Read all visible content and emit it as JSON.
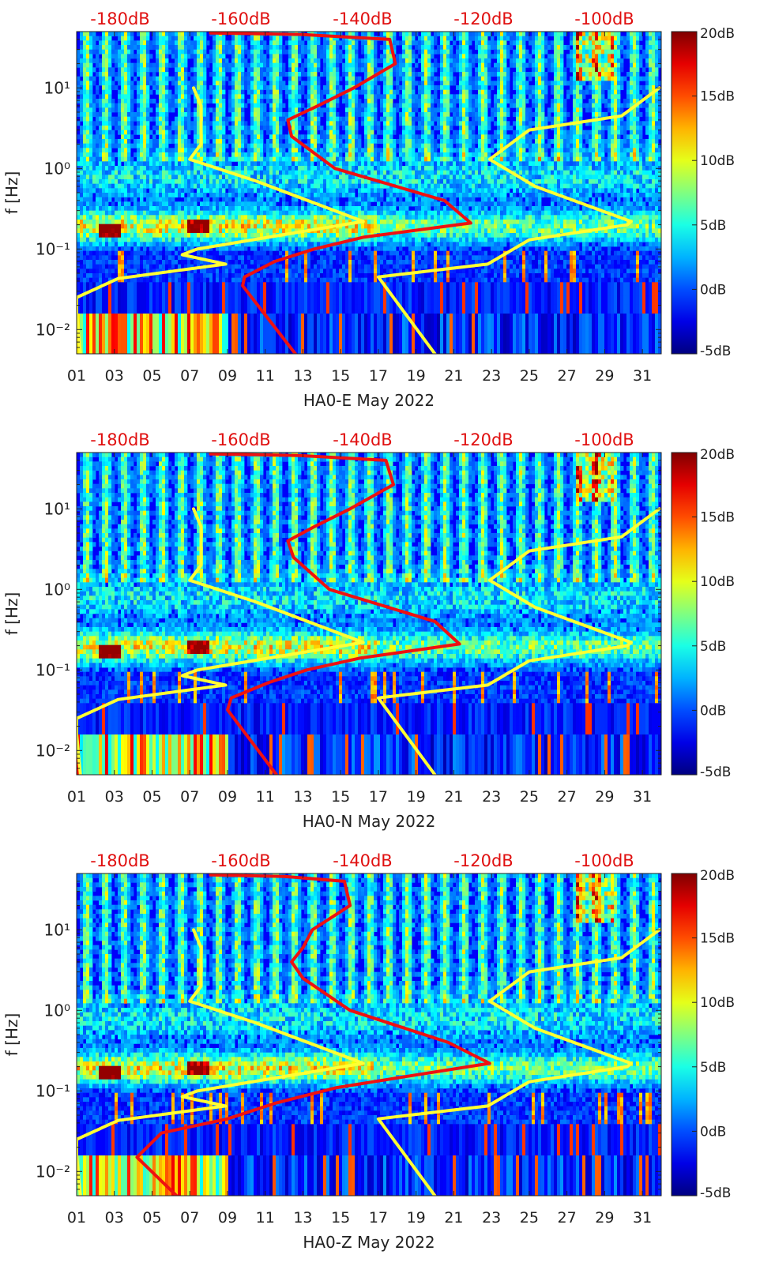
{
  "chart_data": [
    {
      "type": "heatmap",
      "title": "",
      "xlabel": "HA0-E May 2022",
      "ylabel": "f [Hz]",
      "x_ticks": [
        "01",
        "03",
        "05",
        "07",
        "09",
        "11",
        "13",
        "15",
        "17",
        "19",
        "21",
        "23",
        "25",
        "27",
        "29",
        "31"
      ],
      "xlim": [
        1,
        32
      ],
      "y_scale": "log",
      "ylim": [
        0.005,
        50
      ],
      "y_ticks": [
        "10^-2",
        "10^-1",
        "10^0",
        "10^1"
      ],
      "top_axis_ticks": [
        "-180dB",
        "-160dB",
        "-140dB",
        "-120dB",
        "-100dB"
      ],
      "colorbar": {
        "range": [
          -5,
          20
        ],
        "ticks": [
          "20dB",
          "15dB",
          "10dB",
          "5dB",
          "0dB",
          "-5dB"
        ],
        "colormap": "jet"
      },
      "series": [
        {
          "color": "#ffff33",
          "points": [
            [
              1.2,
              0.005
            ],
            [
              1.0,
              0.016
            ],
            [
              1.0,
              0.025
            ],
            [
              3.2,
              0.043
            ],
            [
              8.9,
              0.065
            ],
            [
              6.6,
              0.085
            ],
            [
              7.4,
              0.1
            ],
            [
              16.2,
              0.22
            ],
            [
              10.5,
              0.7
            ],
            [
              7.0,
              1.3
            ],
            [
              7.6,
              2.0
            ],
            [
              7.6,
              6.0
            ],
            [
              7.2,
              10.0
            ]
          ]
        },
        {
          "color": "#ffff33",
          "points": [
            [
              20.0,
              0.005
            ],
            [
              17.0,
              0.045
            ],
            [
              22.8,
              0.065
            ],
            [
              25.0,
              0.13
            ],
            [
              30.2,
              0.2
            ],
            [
              30.4,
              0.22
            ],
            [
              25.3,
              0.6
            ],
            [
              22.9,
              1.3
            ],
            [
              25.0,
              3.0
            ],
            [
              29.9,
              4.5
            ],
            [
              31.9,
              10.0
            ]
          ]
        },
        {
          "color": "#ee1111",
          "points": [
            [
              12.6,
              0.005
            ],
            [
              9.8,
              0.035
            ],
            [
              9.9,
              0.045
            ],
            [
              11.5,
              0.07
            ],
            [
              13.6,
              0.1
            ],
            [
              16.2,
              0.14
            ],
            [
              21.9,
              0.21
            ],
            [
              20.5,
              0.4
            ],
            [
              14.7,
              1.0
            ],
            [
              12.4,
              2.5
            ],
            [
              12.2,
              4.0
            ],
            [
              13.8,
              6.0
            ],
            [
              15.7,
              10.0
            ],
            [
              17.9,
              20.0
            ],
            [
              17.6,
              40.0
            ],
            [
              13.0,
              46.0
            ],
            [
              8.1,
              48.0
            ]
          ]
        }
      ]
    },
    {
      "type": "heatmap",
      "title": "",
      "xlabel": "HA0-N May 2022",
      "ylabel": "f [Hz]",
      "x_ticks": [
        "01",
        "03",
        "05",
        "07",
        "09",
        "11",
        "13",
        "15",
        "17",
        "19",
        "21",
        "23",
        "25",
        "27",
        "29",
        "31"
      ],
      "xlim": [
        1,
        32
      ],
      "y_scale": "log",
      "ylim": [
        0.005,
        50
      ],
      "y_ticks": [
        "10^-2",
        "10^-1",
        "10^0",
        "10^1"
      ],
      "top_axis_ticks": [
        "-180dB",
        "-160dB",
        "-140dB",
        "-120dB",
        "-100dB"
      ],
      "colorbar": {
        "range": [
          -5,
          20
        ],
        "ticks": [
          "20dB",
          "15dB",
          "10dB",
          "5dB",
          "0dB",
          "-5dB"
        ],
        "colormap": "jet"
      },
      "series": [
        {
          "color": "#ffff33",
          "points": [
            [
              1.2,
              0.005
            ],
            [
              1.0,
              0.016
            ],
            [
              1.0,
              0.025
            ],
            [
              3.2,
              0.043
            ],
            [
              8.9,
              0.065
            ],
            [
              6.6,
              0.085
            ],
            [
              7.4,
              0.1
            ],
            [
              16.2,
              0.22
            ],
            [
              10.5,
              0.7
            ],
            [
              7.0,
              1.3
            ],
            [
              7.6,
              2.0
            ],
            [
              7.6,
              6.0
            ],
            [
              7.2,
              10.0
            ]
          ]
        },
        {
          "color": "#ffff33",
          "points": [
            [
              20.0,
              0.005
            ],
            [
              17.0,
              0.045
            ],
            [
              22.8,
              0.065
            ],
            [
              25.0,
              0.13
            ],
            [
              30.2,
              0.2
            ],
            [
              30.4,
              0.22
            ],
            [
              25.3,
              0.6
            ],
            [
              22.9,
              1.3
            ],
            [
              25.0,
              3.0
            ],
            [
              29.9,
              4.5
            ],
            [
              31.9,
              10.0
            ]
          ]
        },
        {
          "color": "#ee1111",
          "points": [
            [
              11.6,
              0.005
            ],
            [
              9.0,
              0.032
            ],
            [
              9.2,
              0.045
            ],
            [
              11.2,
              0.07
            ],
            [
              13.2,
              0.1
            ],
            [
              16.0,
              0.14
            ],
            [
              21.3,
              0.21
            ],
            [
              20.0,
              0.4
            ],
            [
              14.4,
              1.0
            ],
            [
              12.5,
              2.5
            ],
            [
              12.2,
              4.0
            ],
            [
              13.6,
              6.0
            ],
            [
              15.5,
              10.0
            ],
            [
              17.8,
              20.0
            ],
            [
              17.4,
              40.0
            ],
            [
              12.8,
              46.0
            ],
            [
              8.1,
              48.0
            ]
          ]
        }
      ]
    },
    {
      "type": "heatmap",
      "title": "",
      "xlabel": "HA0-Z May 2022",
      "ylabel": "f [Hz]",
      "x_ticks": [
        "01",
        "03",
        "05",
        "07",
        "09",
        "11",
        "13",
        "15",
        "17",
        "19",
        "21",
        "23",
        "25",
        "27",
        "29",
        "31"
      ],
      "xlim": [
        1,
        32
      ],
      "y_scale": "log",
      "ylim": [
        0.005,
        50
      ],
      "y_ticks": [
        "10^-2",
        "10^-1",
        "10^0",
        "10^1"
      ],
      "top_axis_ticks": [
        "-180dB",
        "-160dB",
        "-140dB",
        "-120dB",
        "-100dB"
      ],
      "colorbar": {
        "range": [
          -5,
          20
        ],
        "ticks": [
          "20dB",
          "15dB",
          "10dB",
          "5dB",
          "0dB",
          "-5dB"
        ],
        "colormap": "jet"
      },
      "series": [
        {
          "color": "#ffff33",
          "points": [
            [
              1.2,
              0.005
            ],
            [
              1.0,
              0.016
            ],
            [
              1.0,
              0.025
            ],
            [
              3.2,
              0.043
            ],
            [
              8.9,
              0.065
            ],
            [
              6.6,
              0.085
            ],
            [
              7.4,
              0.1
            ],
            [
              16.2,
              0.22
            ],
            [
              10.5,
              0.7
            ],
            [
              7.0,
              1.3
            ],
            [
              7.6,
              2.0
            ],
            [
              7.6,
              6.0
            ],
            [
              7.2,
              10.0
            ]
          ]
        },
        {
          "color": "#ffff33",
          "points": [
            [
              20.0,
              0.005
            ],
            [
              17.0,
              0.045
            ],
            [
              22.8,
              0.065
            ],
            [
              25.0,
              0.13
            ],
            [
              30.2,
              0.2
            ],
            [
              30.4,
              0.22
            ],
            [
              25.3,
              0.6
            ],
            [
              22.9,
              1.3
            ],
            [
              25.0,
              3.0
            ],
            [
              29.9,
              4.5
            ],
            [
              31.9,
              10.0
            ]
          ]
        },
        {
          "color": "#ee1111",
          "points": [
            [
              6.3,
              0.005
            ],
            [
              4.2,
              0.015
            ],
            [
              5.5,
              0.03
            ],
            [
              9.0,
              0.045
            ],
            [
              11.5,
              0.07
            ],
            [
              14.8,
              0.11
            ],
            [
              18.4,
              0.15
            ],
            [
              22.9,
              0.22
            ],
            [
              20.7,
              0.4
            ],
            [
              15.5,
              1.0
            ],
            [
              13.0,
              2.5
            ],
            [
              12.4,
              4.0
            ],
            [
              13.0,
              6.0
            ],
            [
              13.5,
              10.0
            ],
            [
              15.5,
              20.0
            ],
            [
              15.2,
              40.0
            ],
            [
              12.0,
              46.0
            ],
            [
              8.1,
              48.0
            ]
          ]
        }
      ]
    }
  ]
}
